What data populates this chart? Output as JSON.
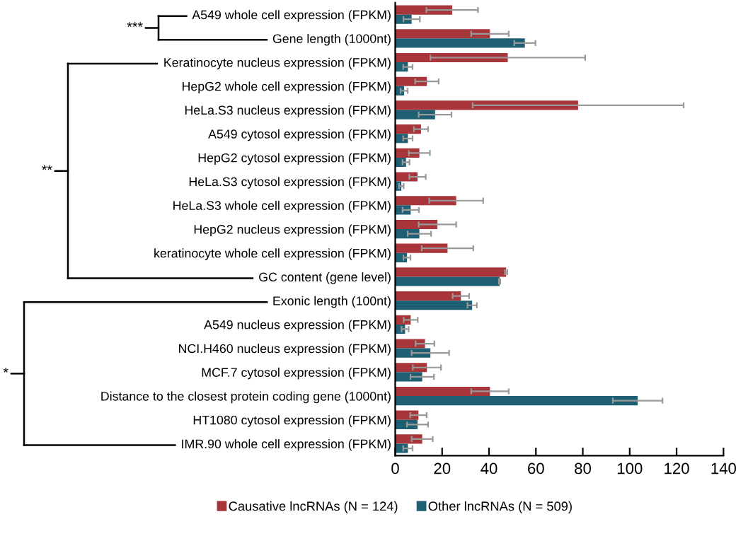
{
  "chart_data": {
    "type": "bar",
    "orientation": "horizontal",
    "categories": [
      "A549 whole cell expression (FPKM)",
      "Gene length (1000nt)",
      "Keratinocyte nucleus expression (FPKM)",
      "HepG2 whole cell expression (FPKM)",
      "HeLa.S3 nucleus expression (FPKM)",
      "A549 cytosol expression (FPKM)",
      "HepG2 cytosol expression (FPKM)",
      "HeLa.S3 cytosol expression (FPKM)",
      "HeLa.S3 whole cell expression (FPKM)",
      "HepG2 nucleus expression (FPKM)",
      "keratinocyte whole cell expression (FPKM)",
      "GC content (gene level)",
      "Exonic length (100nt)",
      "A549 nucleus expression (FPKM)",
      "NCI.H460 nucleus expression (FPKM)",
      "MCF.7 cytosol expression (FPKM)",
      "Distance to the closest protein coding gene (1000nt)",
      "HT1080 cytosol expression (FPKM)",
      "IMR.90 whole cell expression (FPKM)"
    ],
    "series": [
      {
        "name": "Causative lncRNAs (N = 124)",
        "color": "#a8353a",
        "values": [
          24.3,
          40.4,
          48,
          13.5,
          78,
          11,
          10.3,
          9.5,
          26,
          18,
          22.3,
          47.3,
          28,
          6.6,
          12.7,
          13.5,
          40.4,
          9.9,
          11.5
        ],
        "errors": [
          11,
          8,
          33,
          5,
          45,
          3,
          4.5,
          3.5,
          11.5,
          8,
          11,
          0.5,
          3.5,
          3,
          4,
          6,
          8,
          3.5,
          4.5
        ]
      },
      {
        "name": "Other lncRNAs (N = 509)",
        "color": "#1e5f74",
        "values": [
          7,
          55.3,
          5.4,
          3.8,
          17,
          5.4,
          4.6,
          2.6,
          6.6,
          10.3,
          5,
          44.5,
          32.8,
          4.2,
          15,
          11.5,
          103.4,
          9.5,
          5.4
        ],
        "errors": [
          3.5,
          4.5,
          2,
          1.5,
          7,
          2,
          1.5,
          1,
          3.5,
          5,
          1.5,
          0.3,
          2,
          1.5,
          8,
          5,
          10.6,
          4.5,
          2
        ]
      }
    ],
    "xlim": [
      0,
      140
    ],
    "xticks": [
      0,
      20,
      40,
      60,
      80,
      100,
      120,
      140
    ],
    "annotations": [
      "***",
      "**",
      "*"
    ],
    "legend": "bottom",
    "grid": false
  }
}
